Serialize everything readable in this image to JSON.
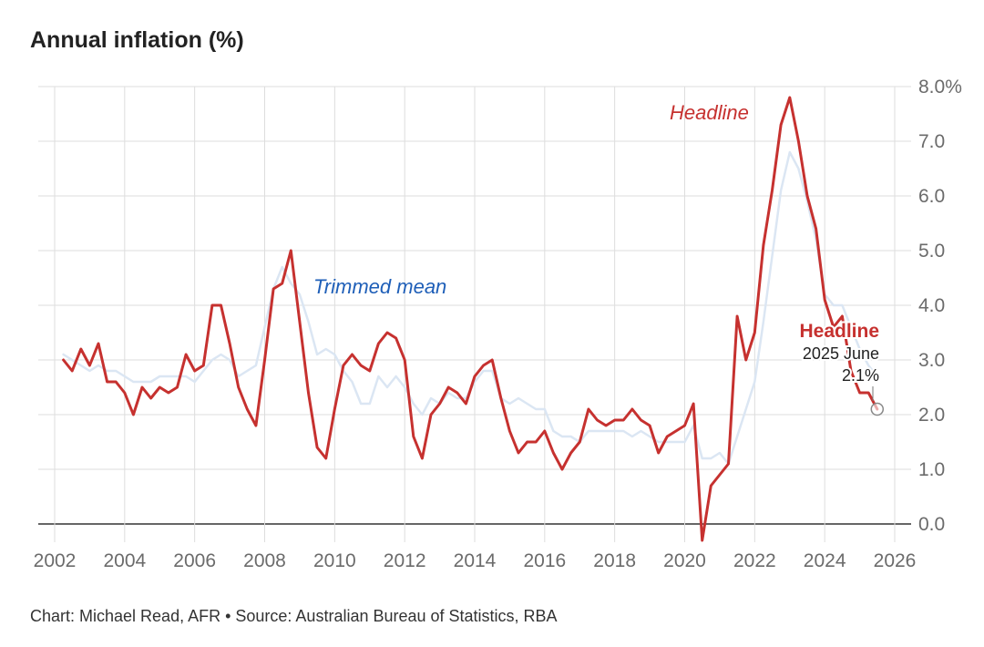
{
  "title": "Annual inflation (%)",
  "footer": "Chart: Michael Read, AFR • Source: Australian Bureau of Statistics, RBA",
  "colors": {
    "headline": "#c6312f",
    "trimmed_mean": "#dbe6f3",
    "trimmed_label": "#1f5fb8",
    "grid": "#dddddd",
    "zero_line": "#333333"
  },
  "chart_data": {
    "type": "line",
    "title": "Annual inflation (%)",
    "xlim": [
      2002,
      2026
    ],
    "ylim": [
      -0.2,
      8.0
    ],
    "x_ticks": [
      "2002",
      "2004",
      "2006",
      "2008",
      "2010",
      "2012",
      "2014",
      "2016",
      "2018",
      "2020",
      "2022",
      "2024",
      "2026"
    ],
    "y_ticks": [
      "0.0",
      "1.0",
      "2.0",
      "3.0",
      "4.0",
      "5.0",
      "6.0",
      "7.0",
      "8.0%"
    ],
    "grid": true,
    "series": [
      {
        "name": "Headline",
        "color": "#c6312f",
        "x": [
          2002.25,
          2002.5,
          2002.75,
          2003,
          2003.25,
          2003.5,
          2003.75,
          2004,
          2004.25,
          2004.5,
          2004.75,
          2005,
          2005.25,
          2005.5,
          2005.75,
          2006,
          2006.25,
          2006.5,
          2006.75,
          2007,
          2007.25,
          2007.5,
          2007.75,
          2008,
          2008.25,
          2008.5,
          2008.75,
          2009,
          2009.25,
          2009.5,
          2009.75,
          2010,
          2010.25,
          2010.5,
          2010.75,
          2011,
          2011.25,
          2011.5,
          2011.75,
          2012,
          2012.25,
          2012.5,
          2012.75,
          2013,
          2013.25,
          2013.5,
          2013.75,
          2014,
          2014.25,
          2014.5,
          2014.75,
          2015,
          2015.25,
          2015.5,
          2015.75,
          2016,
          2016.25,
          2016.5,
          2016.75,
          2017,
          2017.25,
          2017.5,
          2017.75,
          2018,
          2018.25,
          2018.5,
          2018.75,
          2019,
          2019.25,
          2019.5,
          2019.75,
          2020,
          2020.25,
          2020.5,
          2020.75,
          2021,
          2021.25,
          2021.5,
          2021.75,
          2022,
          2022.25,
          2022.5,
          2022.75,
          2023,
          2023.25,
          2023.5,
          2023.75,
          2024,
          2024.25,
          2024.5,
          2024.75,
          2025,
          2025.25,
          2025.5
        ],
        "values": [
          3.0,
          2.8,
          3.2,
          2.9,
          3.3,
          2.6,
          2.6,
          2.4,
          2.0,
          2.5,
          2.3,
          2.5,
          2.4,
          2.5,
          3.1,
          2.8,
          2.9,
          4.0,
          4.0,
          3.3,
          2.5,
          2.1,
          1.8,
          3.0,
          4.3,
          4.4,
          5.0,
          3.7,
          2.4,
          1.4,
          1.2,
          2.1,
          2.9,
          3.1,
          2.9,
          2.8,
          3.3,
          3.5,
          3.4,
          3.0,
          1.6,
          1.2,
          2.0,
          2.2,
          2.5,
          2.4,
          2.2,
          2.7,
          2.9,
          3.0,
          2.3,
          1.7,
          1.3,
          1.5,
          1.5,
          1.7,
          1.3,
          1.0,
          1.3,
          1.5,
          2.1,
          1.9,
          1.8,
          1.9,
          1.9,
          2.1,
          1.9,
          1.8,
          1.3,
          1.6,
          1.7,
          1.8,
          2.2,
          -0.3,
          0.7,
          0.9,
          1.1,
          3.8,
          3.0,
          3.5,
          5.1,
          6.1,
          7.3,
          7.8,
          7.0,
          6.0,
          5.4,
          4.1,
          3.6,
          3.8,
          2.8,
          2.4,
          2.4,
          2.1
        ]
      },
      {
        "name": "Trimmed mean",
        "color": "#dbe6f3",
        "x": [
          2002.25,
          2002.5,
          2002.75,
          2003,
          2003.25,
          2003.5,
          2003.75,
          2004,
          2004.25,
          2004.5,
          2004.75,
          2005,
          2005.25,
          2005.5,
          2005.75,
          2006,
          2006.25,
          2006.5,
          2006.75,
          2007,
          2007.25,
          2007.5,
          2007.75,
          2008,
          2008.25,
          2008.5,
          2008.75,
          2009,
          2009.25,
          2009.5,
          2009.75,
          2010,
          2010.25,
          2010.5,
          2010.75,
          2011,
          2011.25,
          2011.5,
          2011.75,
          2012,
          2012.25,
          2012.5,
          2012.75,
          2013,
          2013.25,
          2013.5,
          2013.75,
          2014,
          2014.25,
          2014.5,
          2014.75,
          2015,
          2015.25,
          2015.5,
          2015.75,
          2016,
          2016.25,
          2016.5,
          2016.75,
          2017,
          2017.25,
          2017.5,
          2017.75,
          2018,
          2018.25,
          2018.5,
          2018.75,
          2019,
          2019.25,
          2019.5,
          2019.75,
          2020,
          2020.25,
          2020.5,
          2020.75,
          2021,
          2021.25,
          2021.5,
          2021.75,
          2022,
          2022.25,
          2022.5,
          2022.75,
          2023,
          2023.25,
          2023.5,
          2023.75,
          2024,
          2024.25,
          2024.5,
          2024.75,
          2025,
          2025.25,
          2025.5
        ],
        "values": [
          3.1,
          3.0,
          2.9,
          2.8,
          2.9,
          2.8,
          2.8,
          2.7,
          2.6,
          2.6,
          2.6,
          2.7,
          2.7,
          2.7,
          2.7,
          2.6,
          2.8,
          3.0,
          3.1,
          3.0,
          2.7,
          2.8,
          2.9,
          3.6,
          4.3,
          4.7,
          4.4,
          4.2,
          3.7,
          3.1,
          3.2,
          3.1,
          2.8,
          2.6,
          2.2,
          2.2,
          2.7,
          2.5,
          2.7,
          2.5,
          2.2,
          2.0,
          2.3,
          2.2,
          2.4,
          2.3,
          2.3,
          2.6,
          2.8,
          2.8,
          2.3,
          2.2,
          2.3,
          2.2,
          2.1,
          2.1,
          1.7,
          1.6,
          1.6,
          1.5,
          1.7,
          1.7,
          1.7,
          1.7,
          1.7,
          1.6,
          1.7,
          1.6,
          1.5,
          1.5,
          1.5,
          1.5,
          1.8,
          1.2,
          1.2,
          1.3,
          1.1,
          1.6,
          2.1,
          2.6,
          3.7,
          4.9,
          6.1,
          6.8,
          6.5,
          5.9,
          5.2,
          4.2,
          4.0,
          4.0,
          3.6,
          3.2,
          2.9,
          2.7
        ]
      }
    ],
    "annotations": {
      "headline_label": "Headline",
      "trimmed_label": "Trimmed mean",
      "callout_title": "Headline",
      "callout_date": "2025 June",
      "callout_value": "2.1%"
    }
  }
}
